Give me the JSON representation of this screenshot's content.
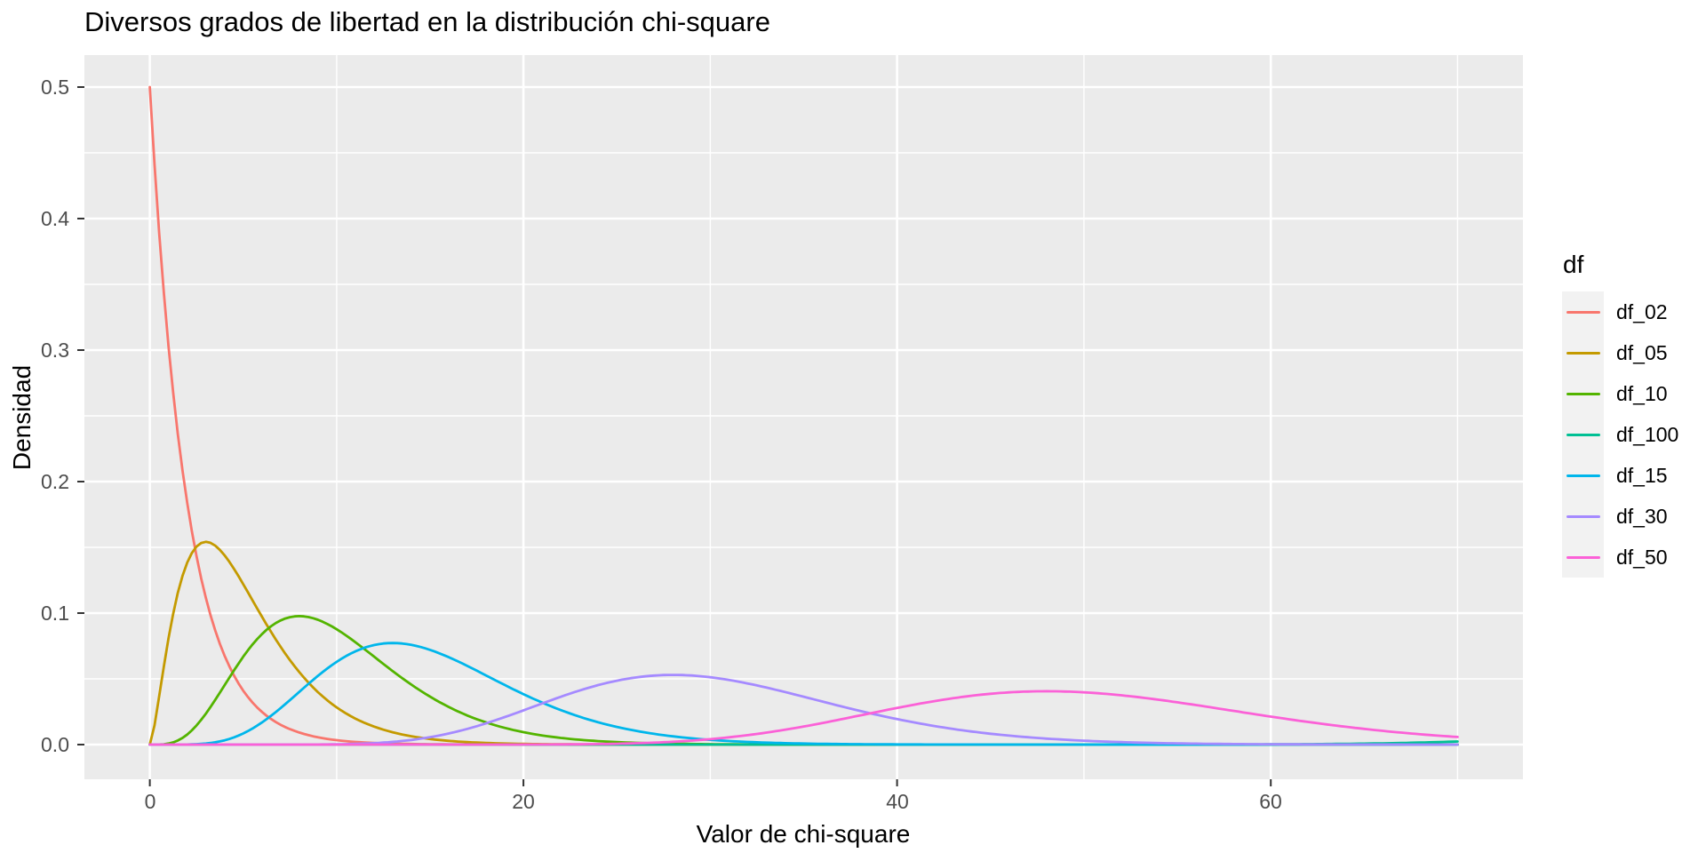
{
  "chart_data": {
    "type": "line",
    "title": "Diversos grados de libertad en la distribución chi-square",
    "xlabel": "Valor de chi-square",
    "ylabel": "Densidad",
    "legend_title": "df",
    "legend_position": "right",
    "grid": true,
    "panel_bg": "#EBEBEB",
    "grid_color": "#FFFFFF",
    "tick_color": "#333333",
    "tick_text_color": "#4D4D4D",
    "xlim": [
      0,
      70
    ],
    "ylim": [
      0,
      0.5
    ],
    "x_ticks": [
      0,
      20,
      40,
      60
    ],
    "x_tick_labels": [
      "0",
      "20",
      "40",
      "60"
    ],
    "y_ticks": [
      0,
      0.1,
      0.2,
      0.3,
      0.4,
      0.5
    ],
    "y_tick_labels": [
      "0.0",
      "0.1",
      "0.2",
      "0.3",
      "0.4",
      "0.5"
    ],
    "x_minor": [
      10,
      30,
      50,
      70
    ],
    "y_minor": [
      0.05,
      0.15,
      0.25,
      0.35,
      0.45
    ],
    "curve_type": "chi-square probability density function",
    "sample_x": [
      0,
      5,
      10,
      15,
      20,
      25,
      30,
      35,
      40,
      45,
      50,
      55,
      60,
      65,
      70
    ],
    "series": [
      {
        "name": "df_02",
        "df": 2,
        "color": "#F8766D",
        "values": [
          0.5,
          0.041,
          0.0034,
          0.0003,
          0,
          0,
          0,
          0,
          0,
          0,
          0,
          0,
          0,
          0,
          0
        ]
      },
      {
        "name": "df_05",
        "df": 5,
        "color": "#C49A00",
        "values": [
          0,
          0.122,
          0.0283,
          0.0043,
          0.0005,
          0.0001,
          0,
          0,
          0,
          0,
          0,
          0,
          0,
          0,
          0
        ]
      },
      {
        "name": "df_10",
        "df": 10,
        "color": "#53B400",
        "values": [
          0,
          0.0668,
          0.0877,
          0.0364,
          0.0095,
          0.0019,
          0.0003,
          0,
          0,
          0,
          0,
          0,
          0,
          0,
          0
        ]
      },
      {
        "name": "df_100",
        "df": 100,
        "color": "#00C094",
        "values": [
          0,
          0,
          0,
          0,
          0,
          0,
          0,
          0,
          0,
          0,
          0,
          0,
          0.0002,
          0.0008,
          0.0024
        ]
      },
      {
        "name": "df_15",
        "df": 15,
        "color": "#00B6EB",
        "values": [
          0,
          0.0085,
          0.0629,
          0.0722,
          0.0385,
          0.0135,
          0.0036,
          0.0008,
          0.0002,
          0,
          0,
          0,
          0,
          0,
          0
        ]
      },
      {
        "name": "df_30",
        "df": 30,
        "color": "#A58AFF",
        "values": [
          0,
          0,
          0.0002,
          0.0056,
          0.0261,
          0.0486,
          0.0514,
          0.0362,
          0.0193,
          0.0083,
          0.003,
          0.001,
          0.0003,
          0.0001,
          0
        ]
      },
      {
        "name": "df_50",
        "df": 50,
        "color": "#FB61D7",
        "values": [
          0,
          0,
          0,
          0,
          0,
          0.0006,
          0.0041,
          0.0139,
          0.0279,
          0.0389,
          0.0398,
          0.0323,
          0.0213,
          0.012,
          0.0058
        ]
      }
    ]
  }
}
